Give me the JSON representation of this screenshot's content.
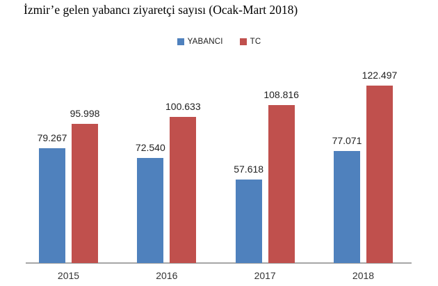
{
  "title": "İzmir’e gelen yabancı ziyaretçi sayısı (Ocak-Mart 2018)",
  "background_color": "#FFFFFF",
  "axis_color": "#A6A6A6",
  "chart_data": {
    "type": "bar",
    "title": "İzmir’e gelen yabancı ziyaretçi sayısı (Ocak-Mart 2018)",
    "categories": [
      "2015",
      "2016",
      "2017",
      "2018"
    ],
    "series": [
      {
        "name": "YABANCI",
        "color": "#4F81BD",
        "values": [
          79267,
          72540,
          57618,
          77071
        ],
        "labels": [
          "79.267",
          "72.540",
          "57.618",
          "77.071"
        ]
      },
      {
        "name": "TC",
        "color": "#C0504D",
        "values": [
          95998,
          100633,
          108816,
          122497
        ],
        "labels": [
          "95.998",
          "100.633",
          "108.816",
          "122.497"
        ]
      }
    ],
    "xlabel": "",
    "ylabel": "",
    "ylim": [
      0,
      130000
    ],
    "grid": false,
    "y_axis_visible": false,
    "legend_position": "top-center",
    "data_labels": true,
    "number_format": "tr-TR thousands with dot"
  }
}
